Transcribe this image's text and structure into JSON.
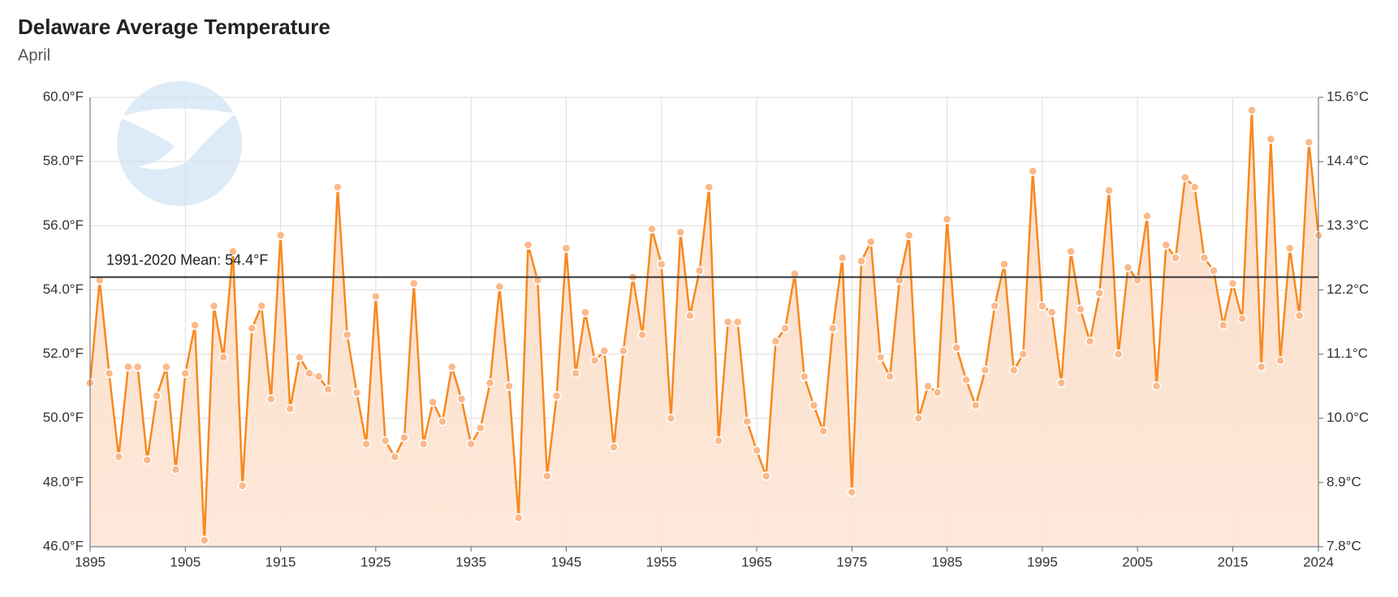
{
  "chart_data": {
    "type": "line",
    "title": "Delaware Average Temperature",
    "subtitle": "April",
    "x": [
      1895,
      1896,
      1897,
      1898,
      1899,
      1900,
      1901,
      1902,
      1903,
      1904,
      1905,
      1906,
      1907,
      1908,
      1909,
      1910,
      1911,
      1912,
      1913,
      1914,
      1915,
      1916,
      1917,
      1918,
      1919,
      1920,
      1921,
      1922,
      1923,
      1924,
      1925,
      1926,
      1927,
      1928,
      1929,
      1930,
      1931,
      1932,
      1933,
      1934,
      1935,
      1936,
      1937,
      1938,
      1939,
      1940,
      1941,
      1942,
      1943,
      1944,
      1945,
      1946,
      1947,
      1948,
      1949,
      1950,
      1951,
      1952,
      1953,
      1954,
      1955,
      1956,
      1957,
      1958,
      1959,
      1960,
      1961,
      1962,
      1963,
      1964,
      1965,
      1966,
      1967,
      1968,
      1969,
      1970,
      1971,
      1972,
      1973,
      1974,
      1975,
      1976,
      1977,
      1978,
      1979,
      1980,
      1981,
      1982,
      1983,
      1984,
      1985,
      1986,
      1987,
      1988,
      1989,
      1990,
      1991,
      1992,
      1993,
      1994,
      1995,
      1996,
      1997,
      1998,
      1999,
      2000,
      2001,
      2002,
      2003,
      2004,
      2005,
      2006,
      2007,
      2008,
      2009,
      2010,
      2011,
      2012,
      2013,
      2014,
      2015,
      2016,
      2017,
      2018,
      2019,
      2020,
      2021,
      2022,
      2023,
      2024
    ],
    "series": [
      {
        "color": "#f7891f",
        "values": [
          51.1,
          54.3,
          51.4,
          48.8,
          51.6,
          51.6,
          48.7,
          50.7,
          51.6,
          48.4,
          51.4,
          52.9,
          46.2,
          53.5,
          51.9,
          55.2,
          47.9,
          52.8,
          53.5,
          50.6,
          55.7,
          50.3,
          51.9,
          51.4,
          51.3,
          50.9,
          57.2,
          52.6,
          50.8,
          49.2,
          53.8,
          49.3,
          48.8,
          49.4,
          54.2,
          49.2,
          50.5,
          49.9,
          51.6,
          50.6,
          49.2,
          49.7,
          51.1,
          54.1,
          51.0,
          46.9,
          55.4,
          54.3,
          48.2,
          50.7,
          55.3,
          51.4,
          53.3,
          51.8,
          52.1,
          49.1,
          52.1,
          54.4,
          52.6,
          55.9,
          54.8,
          50.0,
          55.8,
          53.2,
          54.6,
          57.2,
          49.3,
          53.0,
          53.0,
          49.9,
          49.0,
          48.2,
          52.4,
          52.8,
          54.5,
          51.3,
          50.4,
          49.6,
          52.8,
          55.0,
          47.7,
          54.9,
          55.5,
          51.9,
          51.3,
          54.3,
          55.7,
          50.0,
          51.0,
          50.8,
          56.2,
          52.2,
          51.2,
          50.4,
          51.5,
          53.5,
          54.8,
          51.5,
          52.0,
          57.7,
          53.5,
          53.3,
          51.1,
          55.2,
          53.4,
          52.4,
          53.9,
          57.1,
          52.0,
          54.7,
          54.3,
          56.3,
          51.0,
          55.4,
          55.0,
          57.5,
          57.2,
          55.0,
          54.6,
          52.9,
          54.2,
          53.1,
          59.6,
          51.6,
          58.7,
          51.8,
          55.3,
          53.2,
          58.6,
          55.7
        ]
      }
    ],
    "xlim": [
      1895,
      2024
    ],
    "xticks": [
      1895,
      1905,
      1915,
      1925,
      1935,
      1945,
      1955,
      1965,
      1975,
      1985,
      1995,
      2005,
      2015,
      2024
    ],
    "ylim": [
      46,
      60
    ],
    "yticks": [
      {
        "value": 46,
        "label": "46.0°F"
      },
      {
        "value": 48,
        "label": "48.0°F"
      },
      {
        "value": 50,
        "label": "50.0°F"
      },
      {
        "value": 52,
        "label": "52.0°F"
      },
      {
        "value": 54,
        "label": "54.0°F"
      },
      {
        "value": 56,
        "label": "56.0°F"
      },
      {
        "value": 58,
        "label": "58.0°F"
      },
      {
        "value": 60,
        "label": "60.0°F"
      }
    ],
    "y2lim": [
      7.778,
      15.556
    ],
    "y2ticks": [
      {
        "value": 7.778,
        "label": "7.8°C"
      },
      {
        "value": 8.889,
        "label": "8.9°C"
      },
      {
        "value": 10,
        "label": "10.0°C"
      },
      {
        "value": 11.111,
        "label": "11.1°C"
      },
      {
        "value": 12.222,
        "label": "12.2°C"
      },
      {
        "value": 13.333,
        "label": "13.3°C"
      },
      {
        "value": 14.444,
        "label": "14.4°C"
      },
      {
        "value": 15.556,
        "label": "15.6°C"
      }
    ],
    "mean_line": {
      "value": 54.4,
      "label": "1991-2020 Mean: 54.4°F"
    },
    "grid": true
  }
}
